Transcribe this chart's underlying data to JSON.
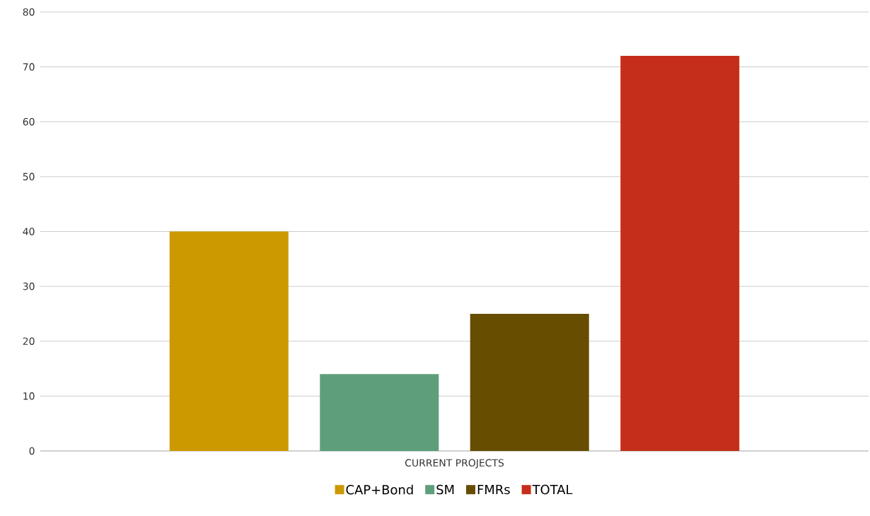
{
  "chart_data": {
    "type": "bar",
    "categories": [
      "CURRENT PROJECTS"
    ],
    "series": [
      {
        "name": "CAP+Bond",
        "color": "#cc9900",
        "values": [
          40
        ]
      },
      {
        "name": "SM",
        "color": "#5f9e7a",
        "values": [
          14
        ]
      },
      {
        "name": "FMRs",
        "color": "#664d00",
        "values": [
          25
        ]
      },
      {
        "name": "TOTAL",
        "color": "#c52e1b",
        "values": [
          72
        ]
      }
    ],
    "ylim": [
      0,
      80
    ],
    "yticks": [
      0,
      10,
      20,
      30,
      40,
      50,
      60,
      70,
      80
    ],
    "grid": "y",
    "legend": "bottom"
  }
}
